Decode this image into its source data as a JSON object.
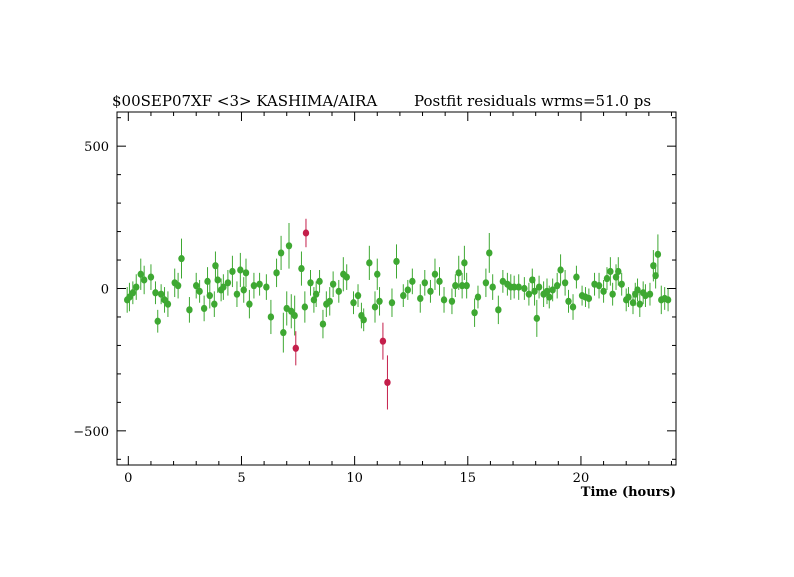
{
  "chart_data": {
    "type": "scatter",
    "title_left": "$00SEP07XF <3> KASHIMA/AIRA",
    "title_right": "Postfit residuals wrms=51.0  ps",
    "xlabel": "Time (hours)",
    "ylabel": "",
    "xlim": [
      -0.5,
      24.2
    ],
    "ylim": [
      -620,
      620
    ],
    "x_ticks": [
      0,
      5,
      10,
      15,
      20
    ],
    "y_ticks": [
      500,
      0,
      -500
    ],
    "y_tick_labels": [
      "500",
      "0",
      "−500"
    ],
    "grid": false,
    "colors": {
      "good": "#3ea832",
      "outlier": "#c41e4a"
    },
    "series": [
      {
        "points": [
          [
            -0.05,
            -40,
            45
          ],
          [
            0.05,
            -30,
            50
          ],
          [
            0.2,
            -15,
            40
          ],
          [
            0.35,
            5,
            45
          ],
          [
            0.55,
            50,
            55
          ],
          [
            0.7,
            30,
            50
          ],
          [
            1.0,
            40,
            45
          ],
          [
            1.2,
            -15,
            40
          ],
          [
            1.3,
            -115,
            40
          ],
          [
            1.45,
            -20,
            35
          ],
          [
            1.6,
            -40,
            45
          ],
          [
            1.75,
            -55,
            45
          ],
          [
            2.05,
            20,
            50
          ],
          [
            2.2,
            10,
            45
          ],
          [
            2.35,
            105,
            70
          ],
          [
            2.7,
            -75,
            45
          ],
          [
            3.0,
            10,
            45
          ],
          [
            3.15,
            -10,
            40
          ],
          [
            3.35,
            -70,
            45
          ],
          [
            3.5,
            25,
            50
          ],
          [
            3.6,
            -25,
            45
          ],
          [
            3.8,
            -55,
            45
          ],
          [
            3.85,
            80,
            50
          ],
          [
            3.95,
            30,
            45
          ],
          [
            4.1,
            -5,
            40
          ],
          [
            4.2,
            5,
            45
          ],
          [
            4.4,
            20,
            45
          ],
          [
            4.6,
            60,
            55
          ],
          [
            4.8,
            -20,
            45
          ],
          [
            4.95,
            65,
            60
          ],
          [
            5.1,
            -5,
            45
          ],
          [
            5.2,
            55,
            50
          ],
          [
            5.35,
            -55,
            50
          ],
          [
            5.55,
            10,
            45
          ],
          [
            5.8,
            15,
            40
          ],
          [
            6.1,
            5,
            45
          ],
          [
            6.3,
            -100,
            60
          ],
          [
            6.55,
            55,
            50
          ],
          [
            6.75,
            125,
            60
          ],
          [
            6.85,
            -155,
            70
          ],
          [
            7.0,
            -70,
            60
          ],
          [
            7.1,
            150,
            80
          ],
          [
            7.2,
            -80,
            60
          ],
          [
            7.35,
            -95,
            70
          ],
          [
            7.65,
            70,
            60
          ],
          [
            7.8,
            -65,
            55
          ],
          [
            8.05,
            20,
            45
          ],
          [
            8.2,
            -40,
            45
          ],
          [
            8.3,
            -20,
            45
          ],
          [
            8.45,
            25,
            40
          ],
          [
            8.6,
            -125,
            50
          ],
          [
            8.75,
            -55,
            45
          ],
          [
            8.9,
            -45,
            50
          ],
          [
            9.05,
            15,
            45
          ],
          [
            9.3,
            -10,
            40
          ],
          [
            9.5,
            50,
            60
          ],
          [
            9.65,
            40,
            45
          ],
          [
            9.95,
            -50,
            40
          ],
          [
            10.15,
            -25,
            40
          ],
          [
            10.3,
            -95,
            45
          ],
          [
            10.4,
            -110,
            40
          ],
          [
            10.65,
            90,
            60
          ],
          [
            10.9,
            -65,
            55
          ],
          [
            11.0,
            50,
            55
          ],
          [
            11.1,
            -45,
            50
          ],
          [
            11.65,
            -50,
            50
          ],
          [
            11.85,
            95,
            60
          ],
          [
            12.15,
            -25,
            40
          ],
          [
            12.35,
            -5,
            35
          ],
          [
            12.55,
            25,
            45
          ],
          [
            12.9,
            -35,
            50
          ],
          [
            13.1,
            20,
            45
          ],
          [
            13.35,
            -10,
            40
          ],
          [
            13.55,
            50,
            55
          ],
          [
            13.75,
            25,
            50
          ],
          [
            13.95,
            -40,
            45
          ],
          [
            14.3,
            -45,
            45
          ],
          [
            14.45,
            10,
            40
          ],
          [
            14.6,
            55,
            60
          ],
          [
            14.75,
            10,
            45
          ],
          [
            14.85,
            90,
            60
          ],
          [
            14.95,
            10,
            45
          ],
          [
            15.3,
            -85,
            50
          ],
          [
            15.45,
            -30,
            40
          ],
          [
            15.8,
            20,
            50
          ],
          [
            15.95,
            125,
            70
          ],
          [
            16.1,
            5,
            45
          ],
          [
            16.35,
            -75,
            50
          ],
          [
            16.55,
            25,
            40
          ],
          [
            16.75,
            15,
            40
          ],
          [
            16.9,
            5,
            45
          ],
          [
            17.05,
            5,
            40
          ],
          [
            17.25,
            5,
            45
          ],
          [
            17.5,
            0,
            40
          ],
          [
            17.7,
            -20,
            40
          ],
          [
            17.85,
            30,
            40
          ],
          [
            17.95,
            -10,
            50
          ],
          [
            18.05,
            -105,
            65
          ],
          [
            18.15,
            5,
            40
          ],
          [
            18.35,
            -20,
            45
          ],
          [
            18.5,
            -10,
            45
          ],
          [
            18.6,
            -30,
            40
          ],
          [
            18.75,
            -5,
            40
          ],
          [
            18.95,
            10,
            45
          ],
          [
            19.1,
            65,
            55
          ],
          [
            19.3,
            20,
            45
          ],
          [
            19.45,
            -45,
            40
          ],
          [
            19.65,
            -65,
            45
          ],
          [
            19.8,
            40,
            40
          ],
          [
            20.05,
            -25,
            35
          ],
          [
            20.2,
            -30,
            35
          ],
          [
            20.35,
            -35,
            35
          ],
          [
            20.6,
            15,
            40
          ],
          [
            20.8,
            10,
            45
          ],
          [
            21.0,
            -10,
            40
          ],
          [
            21.15,
            35,
            40
          ],
          [
            21.3,
            60,
            50
          ],
          [
            21.4,
            -20,
            40
          ],
          [
            21.55,
            40,
            45
          ],
          [
            21.65,
            60,
            50
          ],
          [
            21.8,
            15,
            40
          ],
          [
            22.0,
            -40,
            40
          ],
          [
            22.1,
            -30,
            35
          ],
          [
            22.3,
            -50,
            40
          ],
          [
            22.4,
            -20,
            40
          ],
          [
            22.5,
            -5,
            40
          ],
          [
            22.6,
            -55,
            45
          ],
          [
            22.75,
            -15,
            40
          ],
          [
            22.85,
            -25,
            40
          ],
          [
            23.05,
            -20,
            40
          ],
          [
            23.2,
            80,
            55
          ],
          [
            23.3,
            45,
            45
          ],
          [
            23.4,
            120,
            70
          ],
          [
            23.55,
            -40,
            50
          ],
          [
            23.7,
            -35,
            40
          ],
          [
            23.85,
            -40,
            40
          ]
        ]
      },
      {
        "points": [
          [
            7.4,
            -210,
            60
          ],
          [
            7.85,
            195,
            50
          ],
          [
            11.25,
            -185,
            65
          ],
          [
            11.45,
            -330,
            95
          ]
        ]
      }
    ]
  }
}
